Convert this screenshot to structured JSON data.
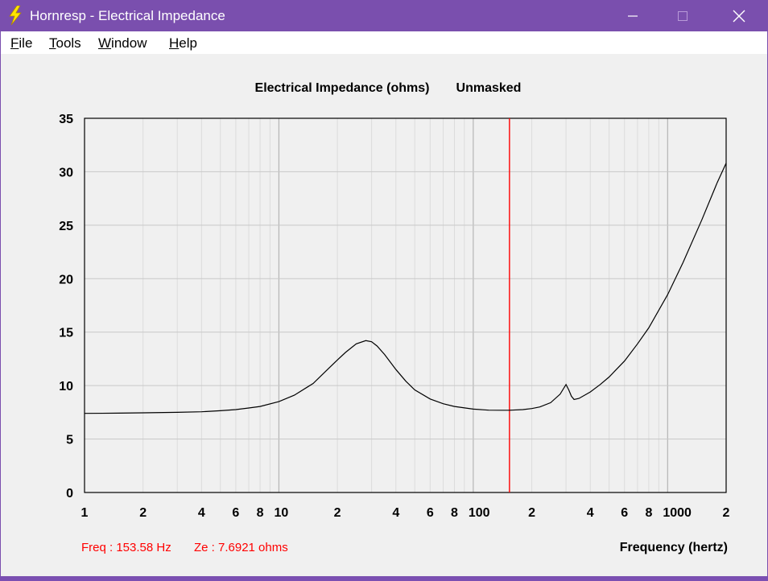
{
  "window": {
    "title": "Hornresp - Electrical Impedance",
    "titlebar_color": "#7a4fae",
    "icon": "lightning-bolt-icon"
  },
  "controls": {
    "minimize_icon": "minimize-icon",
    "maximize_icon": "maximize-icon",
    "close_icon": "close-icon"
  },
  "menu": {
    "items": [
      {
        "label": "File",
        "accel": "F",
        "rest": "ile"
      },
      {
        "label": "Tools",
        "accel": "T",
        "rest": "ools"
      },
      {
        "label": "Window",
        "accel": "W",
        "rest": "indow"
      },
      {
        "label": "Help",
        "accel": "H",
        "rest": "elp"
      }
    ]
  },
  "chart_data": {
    "type": "line",
    "title": "Electrical Impedance (ohms)",
    "mask_status": "Unmasked",
    "xlabel": "Frequency (hertz)",
    "ylabel": "",
    "x_scale": "log",
    "xlim": [
      1,
      2000
    ],
    "ylim": [
      0,
      35
    ],
    "y_ticks": [
      0,
      5,
      10,
      15,
      20,
      25,
      30,
      35
    ],
    "x_tick_labels": [
      {
        "value": 1,
        "label": "1"
      },
      {
        "value": 2,
        "label": "2"
      },
      {
        "value": 4,
        "label": "4"
      },
      {
        "value": 6,
        "label": "6"
      },
      {
        "value": 8,
        "label": "8"
      },
      {
        "value": 10,
        "label": "10"
      },
      {
        "value": 20,
        "label": "2"
      },
      {
        "value": 40,
        "label": "4"
      },
      {
        "value": 60,
        "label": "6"
      },
      {
        "value": 80,
        "label": "8"
      },
      {
        "value": 100,
        "label": "100"
      },
      {
        "value": 200,
        "label": "2"
      },
      {
        "value": 400,
        "label": "4"
      },
      {
        "value": 600,
        "label": "6"
      },
      {
        "value": 800,
        "label": "8"
      },
      {
        "value": 1000,
        "label": "1000"
      },
      {
        "value": 2000,
        "label": "2"
      }
    ],
    "grid": true,
    "series": [
      {
        "x": [
          1,
          1.5,
          2,
          3,
          4,
          5,
          6,
          7,
          8,
          10,
          12,
          15,
          18,
          20,
          22,
          25,
          28,
          30,
          32,
          35,
          40,
          45,
          50,
          60,
          70,
          80,
          100,
          120,
          140,
          153.58,
          180,
          200,
          220,
          250,
          280,
          300,
          310,
          320,
          330,
          350,
          400,
          450,
          500,
          600,
          700,
          800,
          1000,
          1200,
          1500,
          1800,
          2000
        ],
        "y": [
          7.4,
          7.42,
          7.45,
          7.5,
          7.55,
          7.65,
          7.75,
          7.9,
          8.05,
          8.5,
          9.1,
          10.2,
          11.6,
          12.4,
          13.1,
          13.9,
          14.2,
          14.1,
          13.7,
          12.9,
          11.5,
          10.4,
          9.6,
          8.75,
          8.3,
          8.05,
          7.8,
          7.7,
          7.69,
          7.69,
          7.75,
          7.85,
          8.0,
          8.4,
          9.2,
          10.1,
          9.6,
          9.0,
          8.7,
          8.8,
          9.4,
          10.1,
          10.8,
          12.3,
          13.9,
          15.4,
          18.5,
          21.5,
          25.5,
          29.0,
          30.8
        ],
        "color": "#000000"
      }
    ],
    "cursor": {
      "freq": 153.58,
      "color": "#ff0000"
    },
    "readout": {
      "freq_text": "Freq : 153.58 Hz",
      "ze_text": "Ze : 7.6921 ohms"
    }
  }
}
